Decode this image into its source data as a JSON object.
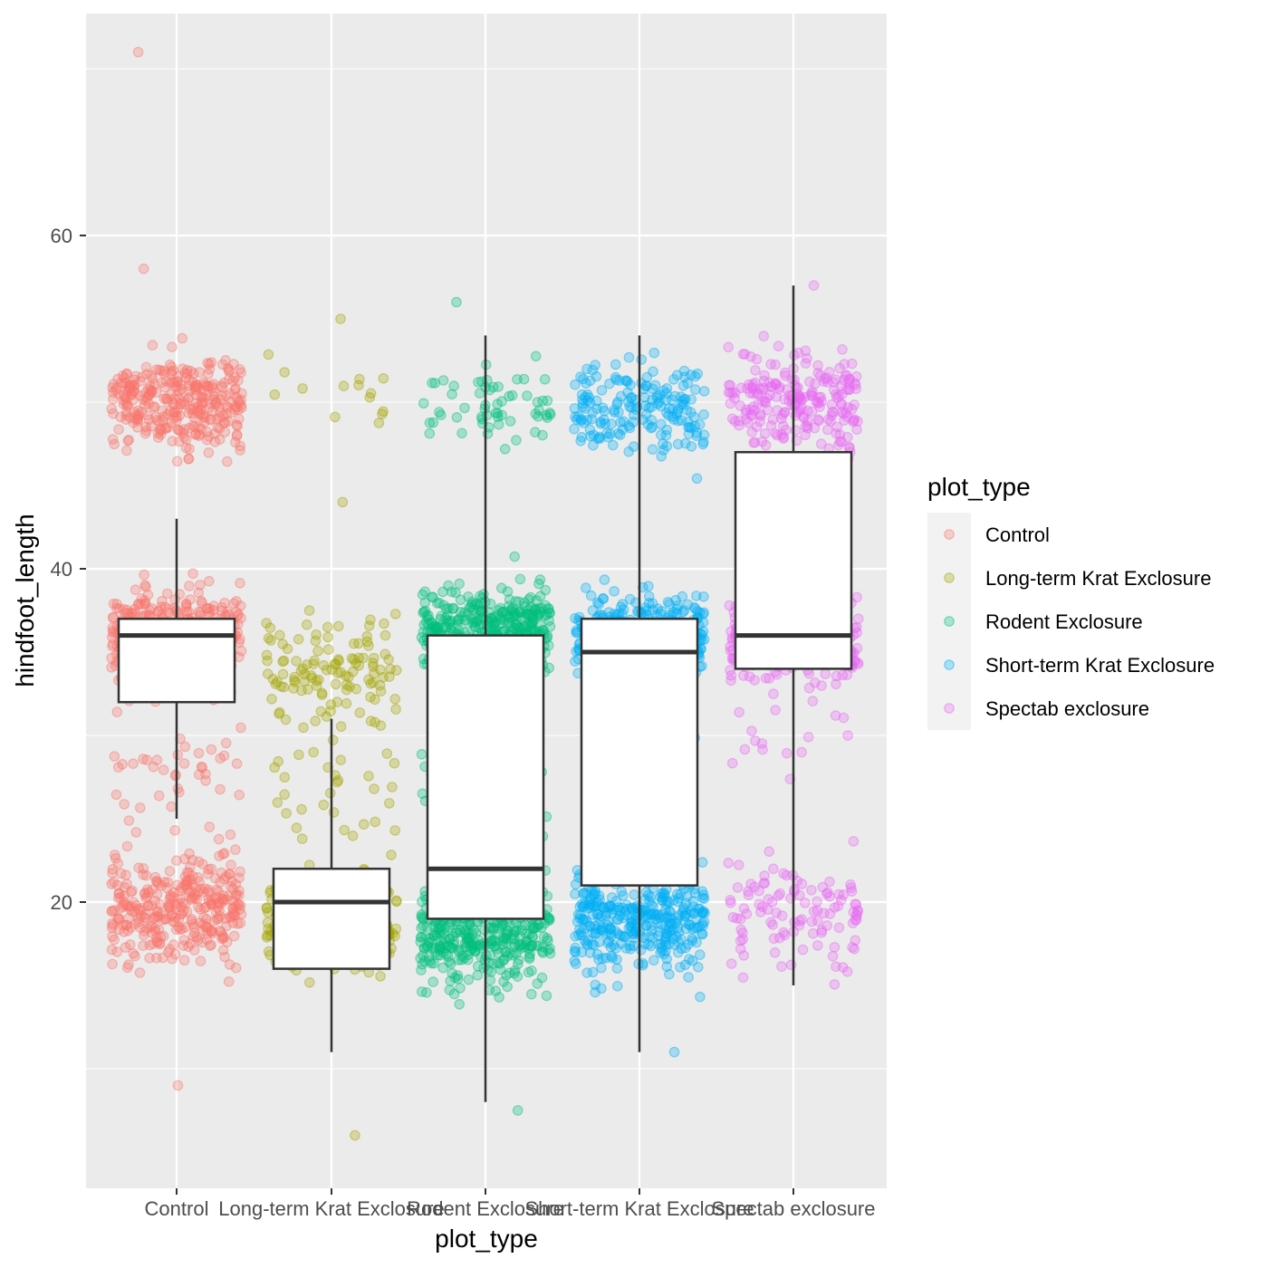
{
  "chart_data": {
    "type": "box",
    "xlabel": "plot_type",
    "ylabel": "hindfoot_length",
    "ylim": [
      2,
      73
    ],
    "y_ticks": [
      20,
      40,
      60
    ],
    "y_tick_labels": [
      "20",
      "40",
      "60"
    ],
    "categories": [
      "Control",
      "Long-term Krat Exclosure",
      "Rodent Exclosure",
      "Short-term Krat Exclosure",
      "Spectab exclosure"
    ],
    "colors": [
      "#F8766D",
      "#A3A500",
      "#00BF7D",
      "#00B0F6",
      "#E76BF3"
    ],
    "boxes": [
      {
        "category": "Control",
        "lower_whisker": 25,
        "q1": 32,
        "median": 36,
        "q3": 37,
        "upper_whisker": 43
      },
      {
        "category": "Long-term Krat Exclosure",
        "lower_whisker": 11,
        "q1": 16,
        "median": 20,
        "q3": 22,
        "upper_whisker": 31
      },
      {
        "category": "Rodent Exclosure",
        "lower_whisker": 8,
        "q1": 19,
        "median": 22,
        "q3": 36,
        "upper_whisker": 54
      },
      {
        "category": "Short-term Krat Exclosure",
        "lower_whisker": 11,
        "q1": 21,
        "median": 35,
        "q3": 37,
        "upper_whisker": 54
      },
      {
        "category": "Spectab exclosure",
        "lower_whisker": 15,
        "q1": 34,
        "median": 36,
        "q3": 47,
        "upper_whisker": 57
      }
    ],
    "jitter_clusters": [
      {
        "category": "Control",
        "clusters": [
          {
            "center": 50,
            "spread": 2.3,
            "count": 320
          },
          {
            "center": 36,
            "spread": 2.3,
            "count": 360
          },
          {
            "center": 19.5,
            "spread": 2.6,
            "count": 330
          },
          {
            "center": 28,
            "spread": 2.5,
            "count": 40
          }
        ]
      },
      {
        "category": "Long-term Krat Exclosure",
        "clusters": [
          {
            "center": 50,
            "spread": 2.3,
            "count": 14
          },
          {
            "center": 34,
            "spread": 2.8,
            "count": 120
          },
          {
            "center": 19,
            "spread": 2.6,
            "count": 280
          },
          {
            "center": 27,
            "spread": 2.5,
            "count": 30
          }
        ]
      },
      {
        "category": "Rodent Exclosure",
        "clusters": [
          {
            "center": 50,
            "spread": 2.3,
            "count": 60
          },
          {
            "center": 36.5,
            "spread": 1.8,
            "count": 340
          },
          {
            "center": 18,
            "spread": 2.6,
            "count": 380
          },
          {
            "center": 28,
            "spread": 2.8,
            "count": 30
          }
        ]
      },
      {
        "category": "Short-term Krat Exclosure",
        "clusters": [
          {
            "center": 49.5,
            "spread": 2.3,
            "count": 180
          },
          {
            "center": 36,
            "spread": 2,
            "count": 340
          },
          {
            "center": 19,
            "spread": 2.6,
            "count": 360
          },
          {
            "center": 28,
            "spread": 2.8,
            "count": 20
          }
        ]
      },
      {
        "category": "Spectab exclosure",
        "clusters": [
          {
            "center": 50,
            "spread": 2.3,
            "count": 220
          },
          {
            "center": 35.5,
            "spread": 2,
            "count": 260
          },
          {
            "center": 19.5,
            "spread": 2.6,
            "count": 110
          },
          {
            "center": 30,
            "spread": 2.8,
            "count": 15
          }
        ]
      }
    ],
    "outliers": [
      {
        "category": "Control",
        "values": [
          71,
          9,
          58
        ]
      },
      {
        "category": "Long-term Krat Exclosure",
        "values": [
          6,
          55,
          44
        ]
      },
      {
        "category": "Rodent Exclosure",
        "values": [
          7.5,
          56
        ]
      },
      {
        "category": "Short-term Krat Exclosure",
        "values": [
          11
        ]
      },
      {
        "category": "Spectab exclosure",
        "values": [
          57
        ]
      }
    ],
    "point_alpha": 0.3,
    "grid": true,
    "legend": {
      "title": "plot_type",
      "position": "right",
      "entries": [
        "Control",
        "Long-term Krat Exclosure",
        "Rodent Exclosure",
        "Short-term Krat Exclosure",
        "Spectab exclosure"
      ]
    }
  }
}
